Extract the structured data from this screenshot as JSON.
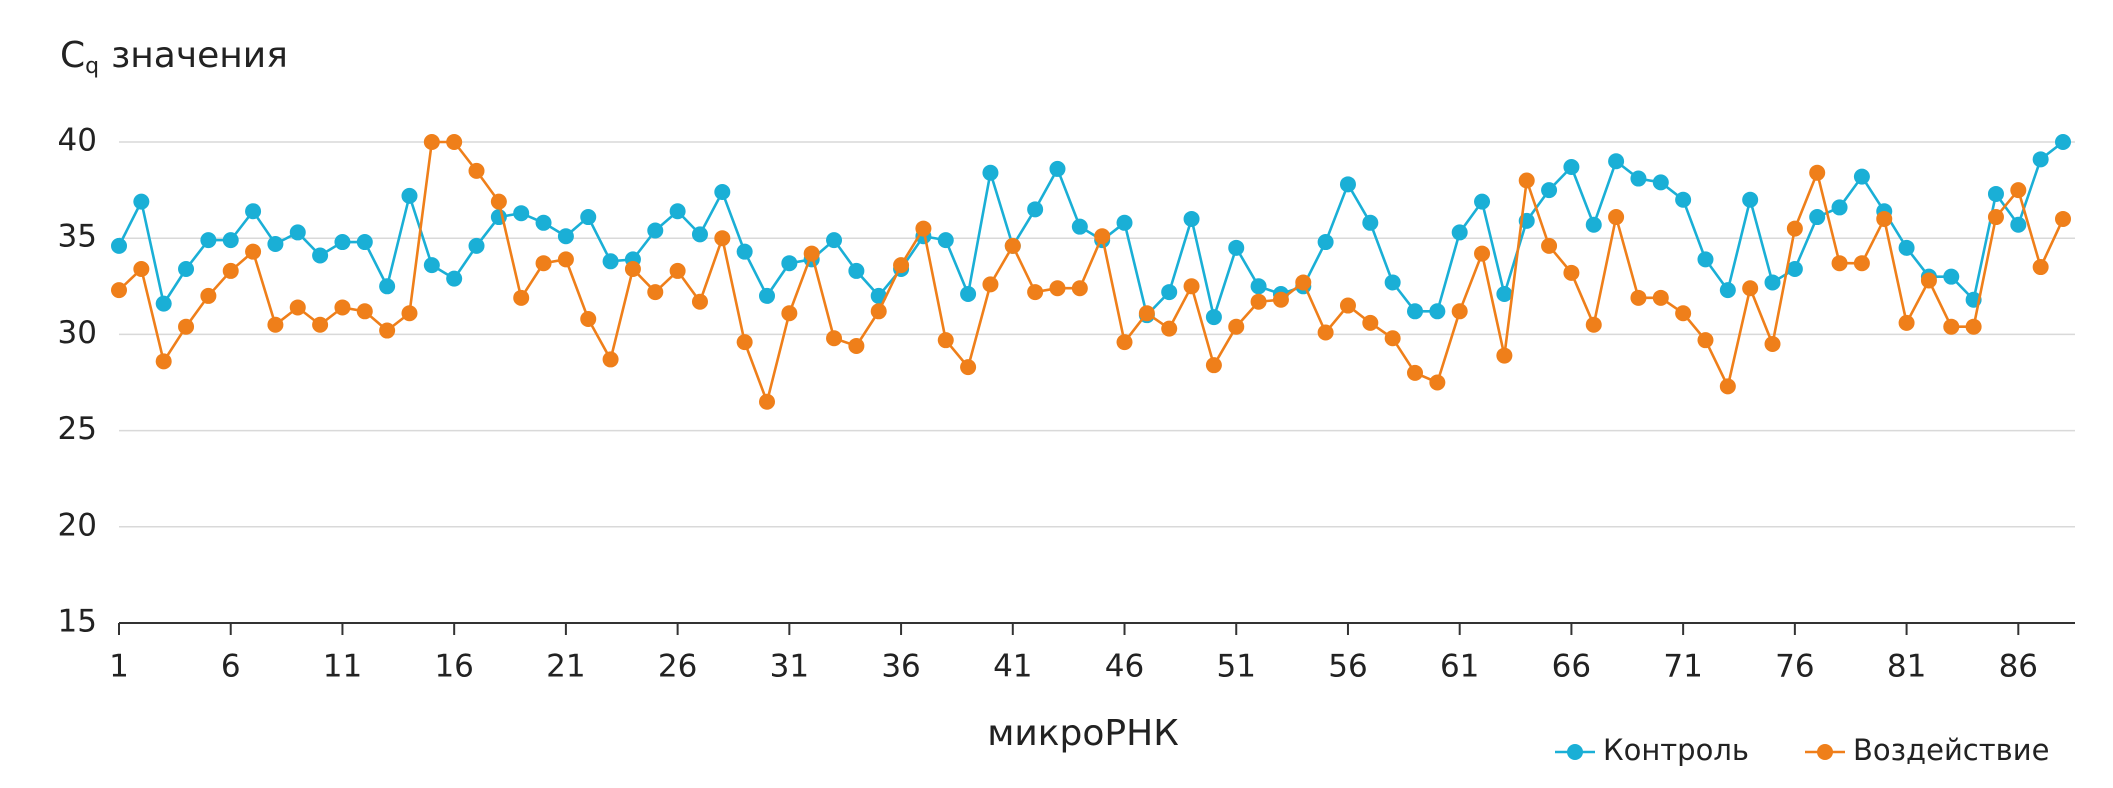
{
  "chart_data": {
    "type": "line",
    "y_label": {
      "main": "C",
      "sub": "q",
      "rest": "значения"
    },
    "x_label": "микроРНК",
    "x": [
      1,
      2,
      3,
      4,
      5,
      6,
      7,
      8,
      9,
      10,
      11,
      12,
      13,
      14,
      15,
      16,
      17,
      18,
      19,
      20,
      21,
      22,
      23,
      24,
      25,
      26,
      27,
      28,
      29,
      30,
      31,
      32,
      33,
      34,
      35,
      36,
      37,
      38,
      39,
      40,
      41,
      42,
      43,
      44,
      45,
      46,
      47,
      48,
      49,
      50,
      51,
      52,
      53,
      54,
      55,
      56,
      57,
      58,
      59,
      60,
      61,
      62,
      63,
      64,
      65,
      66,
      67,
      68,
      69,
      70,
      71,
      72,
      73,
      74,
      75,
      76,
      77,
      78,
      79,
      80,
      81,
      82,
      83,
      84,
      85,
      86,
      87,
      88
    ],
    "series": [
      {
        "name": "Контроль",
        "color": "#1aafd6",
        "values": [
          34.6,
          36.9,
          31.6,
          33.4,
          34.9,
          34.9,
          36.4,
          34.7,
          35.3,
          34.1,
          34.8,
          34.8,
          32.5,
          37.2,
          33.6,
          32.9,
          34.6,
          36.1,
          36.3,
          35.8,
          35.1,
          36.1,
          33.8,
          33.9,
          35.4,
          36.4,
          35.2,
          37.4,
          34.3,
          32.0,
          33.7,
          33.9,
          34.9,
          33.3,
          32.0,
          33.4,
          35.1,
          34.9,
          32.1,
          38.4,
          34.6,
          36.5,
          38.6,
          35.6,
          34.9,
          35.8,
          31.0,
          32.2,
          36.0,
          30.9,
          34.5,
          32.5,
          32.1,
          32.5,
          34.8,
          37.8,
          35.8,
          32.7,
          31.2,
          31.2,
          35.3,
          36.9,
          32.1,
          35.9,
          37.5,
          38.7,
          35.7,
          39.0,
          38.1,
          37.9,
          37.0,
          33.9,
          32.3,
          37.0,
          32.7,
          33.4,
          36.1,
          36.6,
          38.2,
          36.4,
          34.5,
          33.0,
          33.0,
          31.8,
          37.3,
          35.7,
          39.1,
          40.0
        ]
      },
      {
        "name": "Воздействие",
        "color": "#ef7f1a",
        "values": [
          32.3,
          33.4,
          28.6,
          30.4,
          32.0,
          33.3,
          34.3,
          30.5,
          31.4,
          30.5,
          31.4,
          31.2,
          30.2,
          31.1,
          40.0,
          40.0,
          38.5,
          36.9,
          31.9,
          33.7,
          33.9,
          30.8,
          28.7,
          33.4,
          32.2,
          33.3,
          31.7,
          35.0,
          29.6,
          26.5,
          31.1,
          34.2,
          29.8,
          29.4,
          31.2,
          33.6,
          35.5,
          29.7,
          28.3,
          32.6,
          34.6,
          32.2,
          32.4,
          32.4,
          35.1,
          29.6,
          31.1,
          30.3,
          32.5,
          28.4,
          30.4,
          31.7,
          31.8,
          32.7,
          30.1,
          31.5,
          30.6,
          29.8,
          28.0,
          27.5,
          31.2,
          34.2,
          28.9,
          38.0,
          34.6,
          33.2,
          30.5,
          36.1,
          31.9,
          31.9,
          31.1,
          29.7,
          27.3,
          32.4,
          29.5,
          35.5,
          38.4,
          33.7,
          33.7,
          36.0,
          30.6,
          32.8,
          30.4,
          30.4,
          36.1,
          37.5,
          33.5,
          36.0
        ]
      }
    ],
    "xlim": [
      1,
      88
    ],
    "xticks": [
      1,
      6,
      11,
      16,
      21,
      26,
      31,
      36,
      41,
      46,
      51,
      56,
      61,
      66,
      71,
      76,
      81,
      86
    ],
    "ylim": [
      15,
      40
    ],
    "yticks": [
      15,
      20,
      25,
      30,
      35,
      40
    ],
    "grid": true,
    "legend": "bottom-right"
  }
}
